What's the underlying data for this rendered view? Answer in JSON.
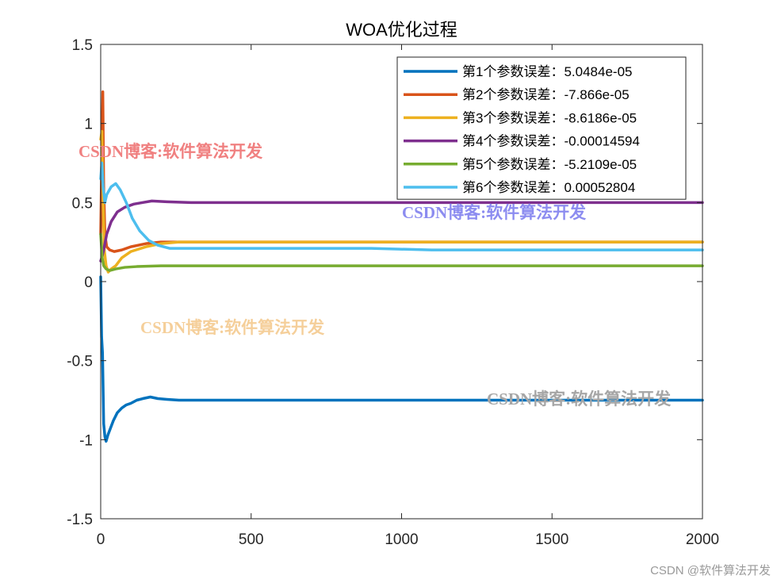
{
  "chart_data": {
    "type": "line",
    "title": "WOA优化过程",
    "xlabel": "",
    "ylabel": "",
    "xlim": [
      0,
      2000
    ],
    "ylim": [
      -1.5,
      1.5
    ],
    "x_ticks": [
      0,
      500,
      1000,
      1500,
      2000
    ],
    "y_ticks": [
      -1.5,
      -1,
      -0.5,
      0,
      0.5,
      1,
      1.5
    ],
    "x_tick_labels": [
      "0",
      "500",
      "1000",
      "1500",
      "2000"
    ],
    "y_tick_labels": [
      "-1.5",
      "-1",
      "-0.5",
      "0",
      "0.5",
      "1",
      "1.5"
    ],
    "grid": false,
    "legend_position": "top-right",
    "series": [
      {
        "name": "第1个参数误差：5.0484e-05",
        "color": "#0072BD",
        "points": [
          [
            0,
            0.03
          ],
          [
            3,
            -0.35
          ],
          [
            6,
            -0.45
          ],
          [
            10,
            -0.9
          ],
          [
            14,
            -0.98
          ],
          [
            18,
            -1.01
          ],
          [
            24,
            -0.97
          ],
          [
            32,
            -0.93
          ],
          [
            42,
            -0.88
          ],
          [
            55,
            -0.83
          ],
          [
            70,
            -0.8
          ],
          [
            85,
            -0.78
          ],
          [
            100,
            -0.77
          ],
          [
            120,
            -0.75
          ],
          [
            140,
            -0.74
          ],
          [
            165,
            -0.73
          ],
          [
            190,
            -0.74
          ],
          [
            220,
            -0.745
          ],
          [
            260,
            -0.75
          ],
          [
            400,
            -0.75
          ],
          [
            1000,
            -0.75
          ],
          [
            2000,
            -0.75
          ]
        ]
      },
      {
        "name": "第2个参数误差：-7.866e-05",
        "color": "#D95319",
        "points": [
          [
            0,
            0.3
          ],
          [
            4,
            0.85
          ],
          [
            7,
            1.2
          ],
          [
            10,
            0.6
          ],
          [
            14,
            0.3
          ],
          [
            20,
            0.22
          ],
          [
            30,
            0.2
          ],
          [
            45,
            0.19
          ],
          [
            70,
            0.2
          ],
          [
            100,
            0.22
          ],
          [
            150,
            0.24
          ],
          [
            200,
            0.25
          ],
          [
            300,
            0.25
          ],
          [
            1000,
            0.25
          ],
          [
            2000,
            0.25
          ]
        ]
      },
      {
        "name": "第3个参数误差：-8.6186e-05",
        "color": "#EDB120",
        "points": [
          [
            0,
            0.9
          ],
          [
            4,
            0.95
          ],
          [
            8,
            0.5
          ],
          [
            12,
            0.2
          ],
          [
            18,
            0.1
          ],
          [
            25,
            0.06
          ],
          [
            35,
            0.08
          ],
          [
            50,
            0.1
          ],
          [
            70,
            0.15
          ],
          [
            100,
            0.19
          ],
          [
            150,
            0.22
          ],
          [
            200,
            0.24
          ],
          [
            260,
            0.25
          ],
          [
            400,
            0.25
          ],
          [
            1000,
            0.25
          ],
          [
            2000,
            0.25
          ]
        ]
      },
      {
        "name": "第4个参数误差：-0.00014594",
        "color": "#7E2F8E",
        "points": [
          [
            0,
            0.13
          ],
          [
            5,
            0.16
          ],
          [
            10,
            0.2
          ],
          [
            20,
            0.3
          ],
          [
            35,
            0.38
          ],
          [
            55,
            0.44
          ],
          [
            80,
            0.47
          ],
          [
            110,
            0.49
          ],
          [
            140,
            0.5
          ],
          [
            170,
            0.51
          ],
          [
            220,
            0.505
          ],
          [
            300,
            0.5
          ],
          [
            600,
            0.5
          ],
          [
            1000,
            0.5
          ],
          [
            2000,
            0.5
          ]
        ]
      },
      {
        "name": "第5个参数误差：-5.2109e-05",
        "color": "#77AC30",
        "points": [
          [
            0,
            0.3
          ],
          [
            5,
            0.15
          ],
          [
            10,
            0.1
          ],
          [
            18,
            0.08
          ],
          [
            30,
            0.07
          ],
          [
            50,
            0.08
          ],
          [
            80,
            0.09
          ],
          [
            120,
            0.095
          ],
          [
            200,
            0.1
          ],
          [
            400,
            0.1
          ],
          [
            1000,
            0.1
          ],
          [
            2000,
            0.1
          ]
        ]
      },
      {
        "name": "第6个参数误差：0.00052804",
        "color": "#4DBEEE",
        "points": [
          [
            0,
            0.65
          ],
          [
            4,
            0.75
          ],
          [
            8,
            0.6
          ],
          [
            14,
            0.5
          ],
          [
            20,
            0.55
          ],
          [
            35,
            0.6
          ],
          [
            50,
            0.62
          ],
          [
            65,
            0.58
          ],
          [
            85,
            0.5
          ],
          [
            105,
            0.4
          ],
          [
            130,
            0.32
          ],
          [
            160,
            0.26
          ],
          [
            190,
            0.23
          ],
          [
            230,
            0.21
          ],
          [
            300,
            0.21
          ],
          [
            900,
            0.21
          ],
          [
            1100,
            0.2
          ],
          [
            1500,
            0.2
          ],
          [
            2000,
            0.2
          ]
        ]
      }
    ]
  },
  "watermarks": [
    {
      "text": "CSDN博客:软件算法开发",
      "color": "#F08080"
    },
    {
      "text": "CSDN博客:软件算法开发",
      "color": "#8C8CF0"
    },
    {
      "text": "CSDN博客:软件算法开发",
      "color": "#F5CF9A"
    },
    {
      "text": "CSDN博客:软件算法开发",
      "color": "#A6A6A6"
    }
  ],
  "credit": "CSDN @软件算法开发"
}
